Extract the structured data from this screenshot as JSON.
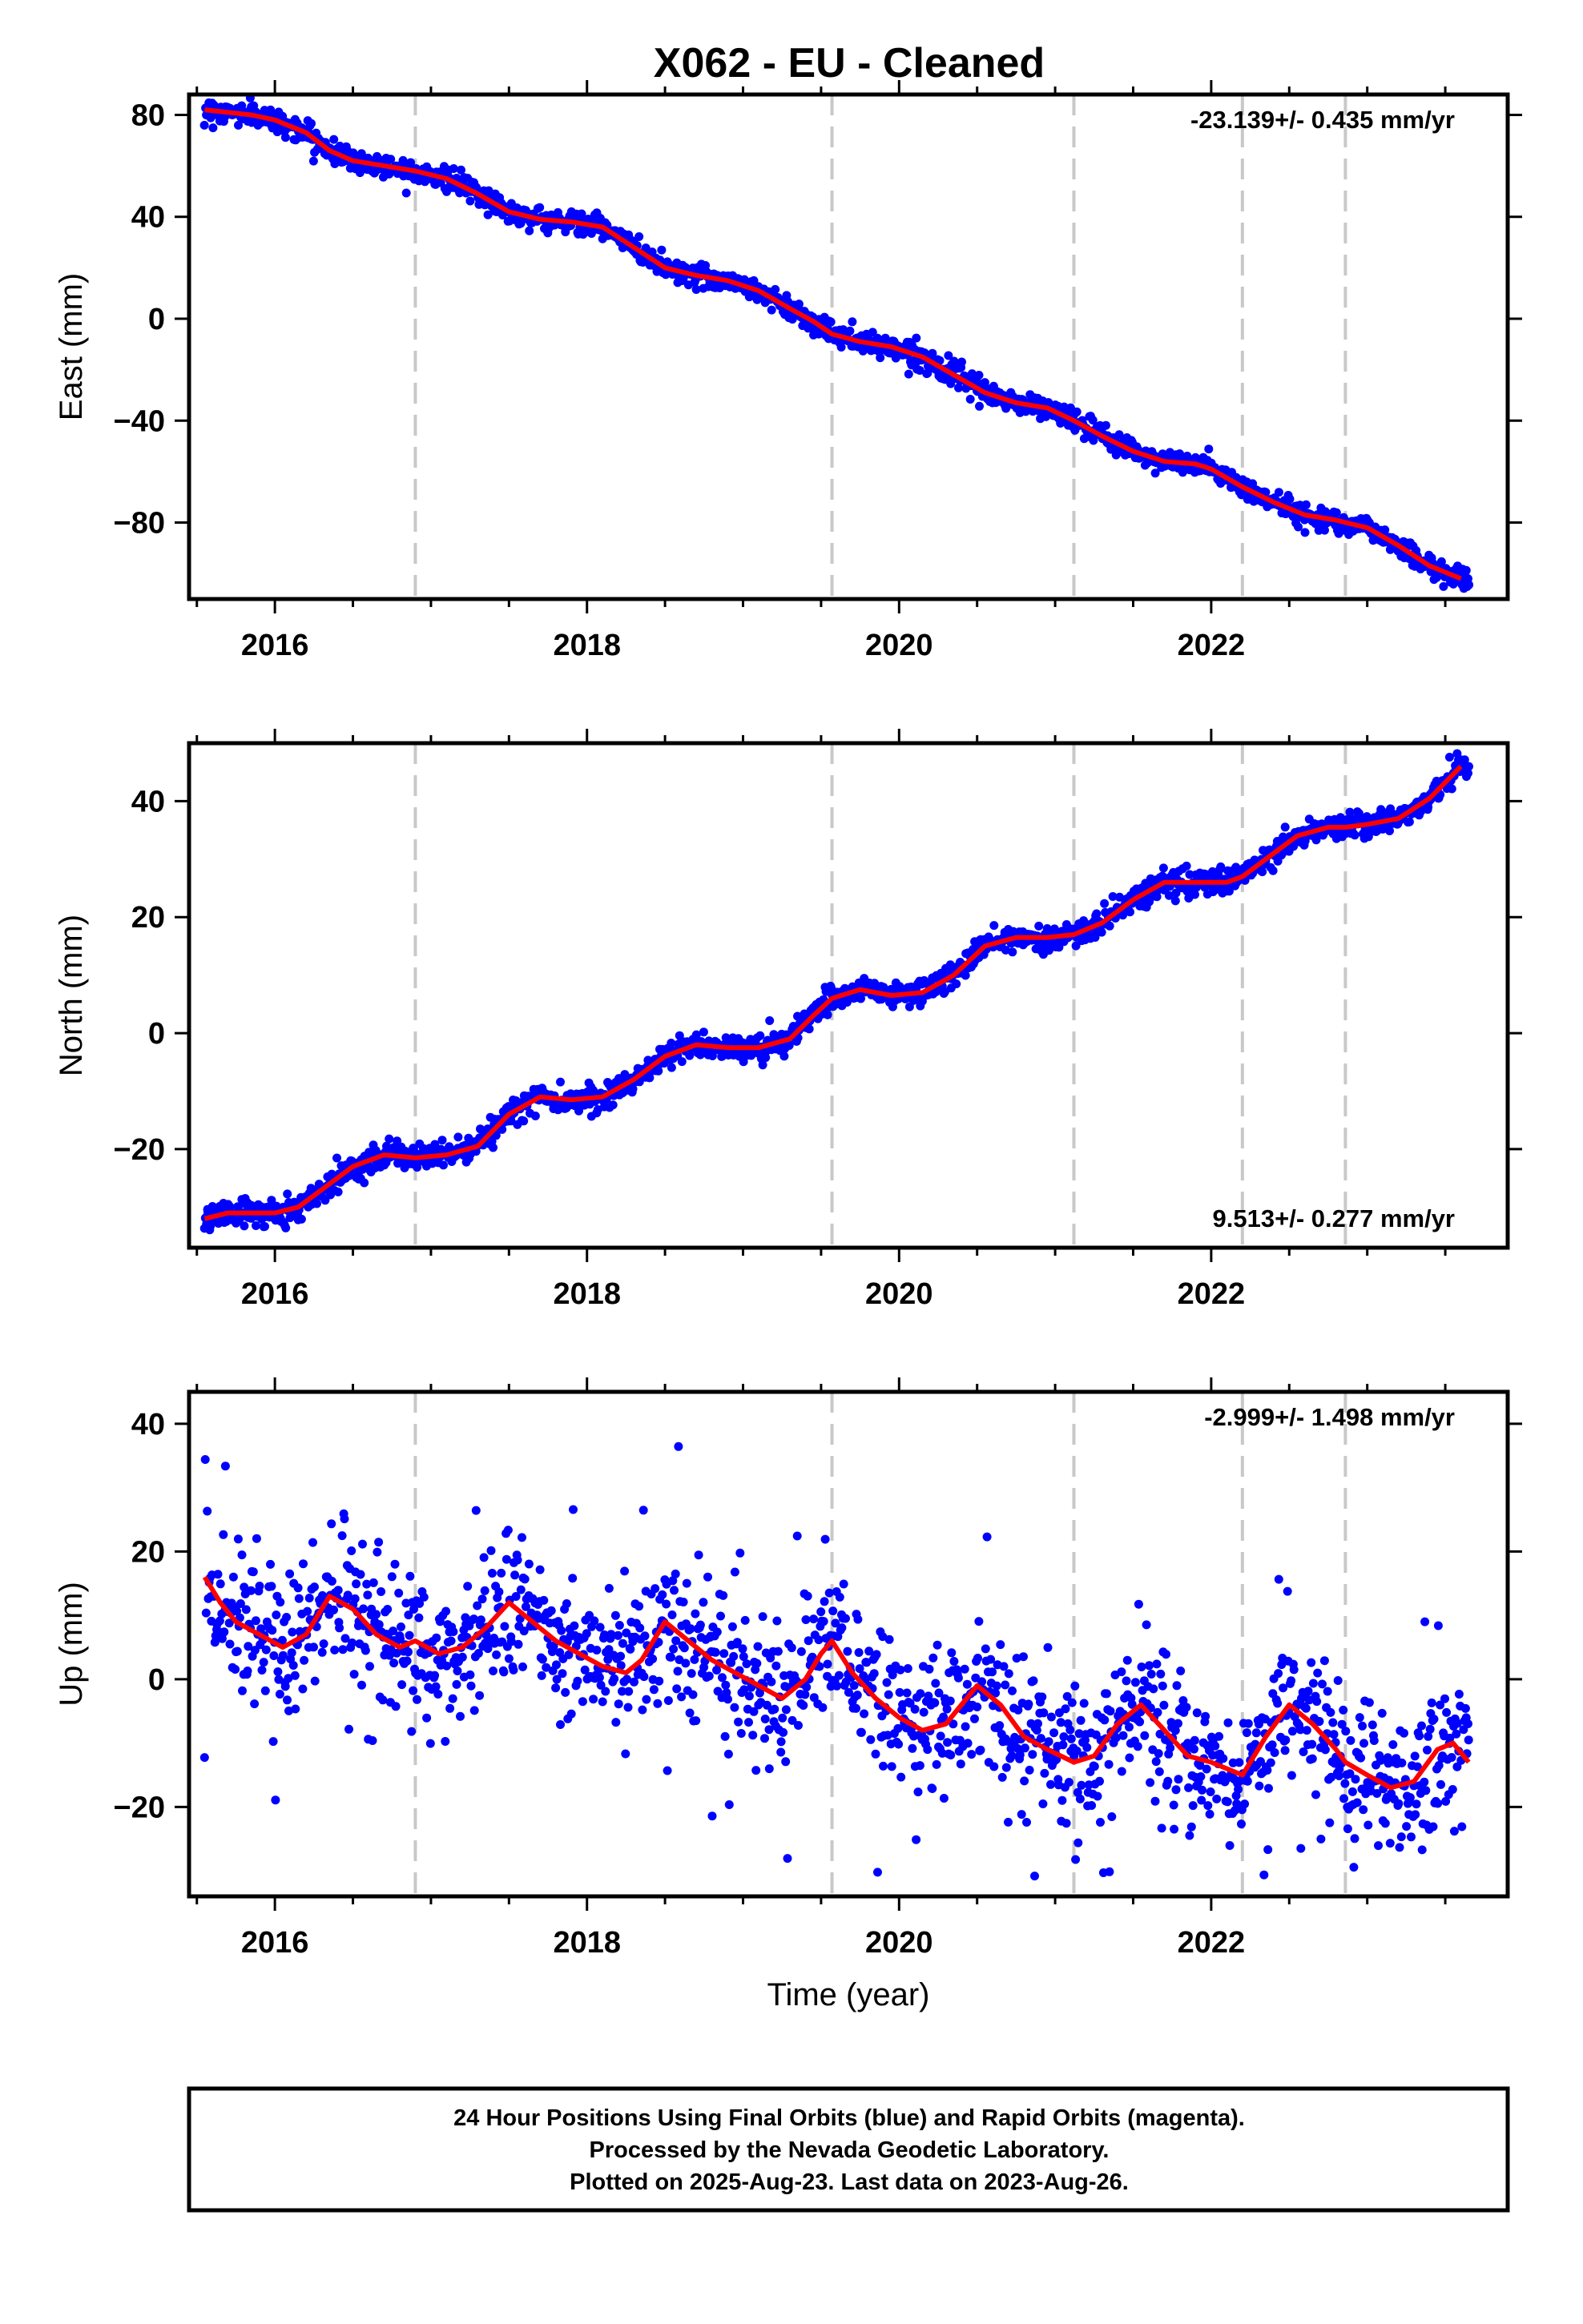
{
  "title": "X062  - EU - Cleaned",
  "footer": {
    "line1": "24 Hour Positions Using Final Orbits (blue) and Rapid Orbits (magenta).",
    "line2": "Processed by the Nevada Geodetic Laboratory.",
    "line3": "Plotted on 2025-Aug-23. Last data on 2023-Aug-26."
  },
  "colors": {
    "data_points": "#0000ff",
    "fit_line": "#ff0000",
    "event_lines": "#c8c8c8",
    "frame": "#000000"
  },
  "chart_data": [
    {
      "type": "scatter",
      "ylabel": "East (mm)",
      "xlabel": "",
      "rate_annotation": "-23.139+/- 0.435 mm/yr",
      "annotation_placement": "top-right",
      "xlim": [
        2015.45,
        2023.9
      ],
      "ylim": [
        -110,
        88
      ],
      "xticks": [
        2016,
        2018,
        2020,
        2022
      ],
      "xtick_labels": [
        "2016",
        "2018",
        "2020",
        "2022"
      ],
      "yticks": [
        80,
        40,
        0,
        -40,
        -80
      ],
      "ytick_labels": [
        "80",
        "40",
        "0",
        "−40",
        "−80"
      ],
      "event_lines_x": [
        2016.9,
        2019.57,
        2021.12,
        2022.2,
        2022.86
      ],
      "grid": false,
      "series": [
        {
          "role": "model",
          "x": [
            2015.55,
            2015.7,
            2015.85,
            2016.0,
            2016.2,
            2016.35,
            2016.5,
            2016.7,
            2016.9,
            2017.1,
            2017.3,
            2017.5,
            2017.7,
            2017.9,
            2018.1,
            2018.3,
            2018.5,
            2018.7,
            2018.9,
            2019.1,
            2019.3,
            2019.45,
            2019.57,
            2019.75,
            2019.95,
            2020.15,
            2020.35,
            2020.55,
            2020.75,
            2020.95,
            2021.12,
            2021.3,
            2021.5,
            2021.7,
            2021.9,
            2022.0,
            2022.2,
            2022.4,
            2022.6,
            2022.8,
            2022.86,
            2023.0,
            2023.2,
            2023.4,
            2023.6
          ],
          "y": [
            82,
            81,
            80,
            78,
            73,
            66,
            62,
            60,
            58,
            55,
            49,
            42,
            39,
            38,
            36,
            28,
            20,
            17,
            15,
            11,
            4,
            -1,
            -6,
            -9,
            -11,
            -15,
            -22,
            -29,
            -33,
            -35,
            -40,
            -46,
            -52,
            -56,
            -57,
            -59,
            -66,
            -72,
            -77,
            -79,
            -80,
            -82,
            -89,
            -97,
            -102
          ]
        },
        {
          "role": "observations",
          "density": "continuous daily positions",
          "scatter_about_model_mm": 2.2,
          "x_range": [
            2015.55,
            2023.65
          ]
        }
      ]
    },
    {
      "type": "scatter",
      "ylabel": "North (mm)",
      "xlabel": "",
      "rate_annotation": "9.513+/- 0.277 mm/yr",
      "annotation_placement": "bottom-right",
      "xlim": [
        2015.45,
        2023.9
      ],
      "ylim": [
        -37,
        50
      ],
      "xticks": [
        2016,
        2018,
        2020,
        2022
      ],
      "xtick_labels": [
        "2016",
        "2018",
        "2020",
        "2022"
      ],
      "yticks": [
        40,
        20,
        0,
        -20
      ],
      "ytick_labels": [
        "40",
        "20",
        "0",
        "−20"
      ],
      "event_lines_x": [
        2016.9,
        2019.57,
        2021.12,
        2022.2,
        2022.86
      ],
      "grid": false,
      "series": [
        {
          "role": "model",
          "x": [
            2015.55,
            2015.7,
            2015.85,
            2016.0,
            2016.15,
            2016.3,
            2016.5,
            2016.7,
            2016.9,
            2017.1,
            2017.3,
            2017.5,
            2017.7,
            2017.9,
            2018.1,
            2018.3,
            2018.5,
            2018.7,
            2018.9,
            2019.1,
            2019.3,
            2019.45,
            2019.57,
            2019.75,
            2019.95,
            2020.15,
            2020.35,
            2020.55,
            2020.75,
            2020.95,
            2021.12,
            2021.3,
            2021.5,
            2021.7,
            2021.9,
            2022.1,
            2022.2,
            2022.35,
            2022.55,
            2022.75,
            2022.86,
            2023.0,
            2023.2,
            2023.4,
            2023.6
          ],
          "y": [
            -32,
            -31,
            -31,
            -31,
            -30,
            -27,
            -23,
            -21,
            -21.5,
            -21,
            -19.5,
            -14,
            -11,
            -11.5,
            -11,
            -8,
            -4,
            -2,
            -2.5,
            -2.5,
            -1,
            3,
            6,
            7.5,
            6.5,
            7,
            10,
            15,
            16.5,
            16.5,
            17,
            19,
            23,
            26,
            26,
            26,
            27,
            30,
            34,
            35.5,
            35.5,
            36,
            37,
            40.5,
            46
          ]
        },
        {
          "role": "observations",
          "density": "continuous daily positions",
          "scatter_about_model_mm": 1.1,
          "x_range": [
            2015.55,
            2023.65
          ]
        }
      ]
    },
    {
      "type": "scatter",
      "ylabel": "Up (mm)",
      "xlabel": "Time (year)",
      "rate_annotation": "-2.999+/- 1.498 mm/yr",
      "annotation_placement": "top-right",
      "xlim": [
        2015.45,
        2023.9
      ],
      "ylim": [
        -34,
        45
      ],
      "xticks": [
        2016,
        2018,
        2020,
        2022
      ],
      "xtick_labels": [
        "2016",
        "2018",
        "2020",
        "2022"
      ],
      "yticks": [
        40,
        20,
        0,
        -20
      ],
      "ytick_labels": [
        "40",
        "20",
        "0",
        "−20"
      ],
      "event_lines_x": [
        2016.9,
        2019.57,
        2021.12,
        2022.2,
        2022.86
      ],
      "grid": false,
      "series": [
        {
          "role": "model",
          "x": [
            2015.55,
            2015.65,
            2015.75,
            2015.9,
            2016.05,
            2016.2,
            2016.35,
            2016.5,
            2016.65,
            2016.8,
            2016.9,
            2017.05,
            2017.2,
            2017.35,
            2017.5,
            2017.65,
            2017.8,
            2017.95,
            2018.1,
            2018.25,
            2018.35,
            2018.5,
            2018.65,
            2018.8,
            2018.95,
            2019.1,
            2019.25,
            2019.4,
            2019.5,
            2019.57,
            2019.7,
            2019.85,
            2020.0,
            2020.15,
            2020.3,
            2020.5,
            2020.65,
            2020.8,
            2020.95,
            2021.12,
            2021.25,
            2021.4,
            2021.55,
            2021.7,
            2021.85,
            2022.0,
            2022.2,
            2022.35,
            2022.5,
            2022.65,
            2022.8,
            2022.86,
            2023.0,
            2023.15,
            2023.3,
            2023.45,
            2023.55,
            2023.65
          ],
          "y": [
            16,
            12,
            9,
            7,
            5,
            7,
            13,
            11,
            7,
            5,
            6,
            4,
            5,
            8,
            12,
            9,
            6,
            4,
            2,
            1,
            3,
            9,
            6,
            3,
            1,
            -1,
            -3,
            0,
            4,
            6,
            1,
            -3,
            -6,
            -8,
            -7,
            -1,
            -4,
            -9,
            -11,
            -13,
            -12,
            -7,
            -4,
            -8,
            -12,
            -13,
            -15,
            -9,
            -4,
            -7,
            -11,
            -13,
            -15,
            -17,
            -16,
            -11,
            -10,
            -13
          ]
        },
        {
          "role": "observations",
          "density": "continuous daily positions",
          "scatter_about_model_mm": 5.5,
          "x_range": [
            2015.55,
            2023.65
          ]
        }
      ]
    }
  ]
}
